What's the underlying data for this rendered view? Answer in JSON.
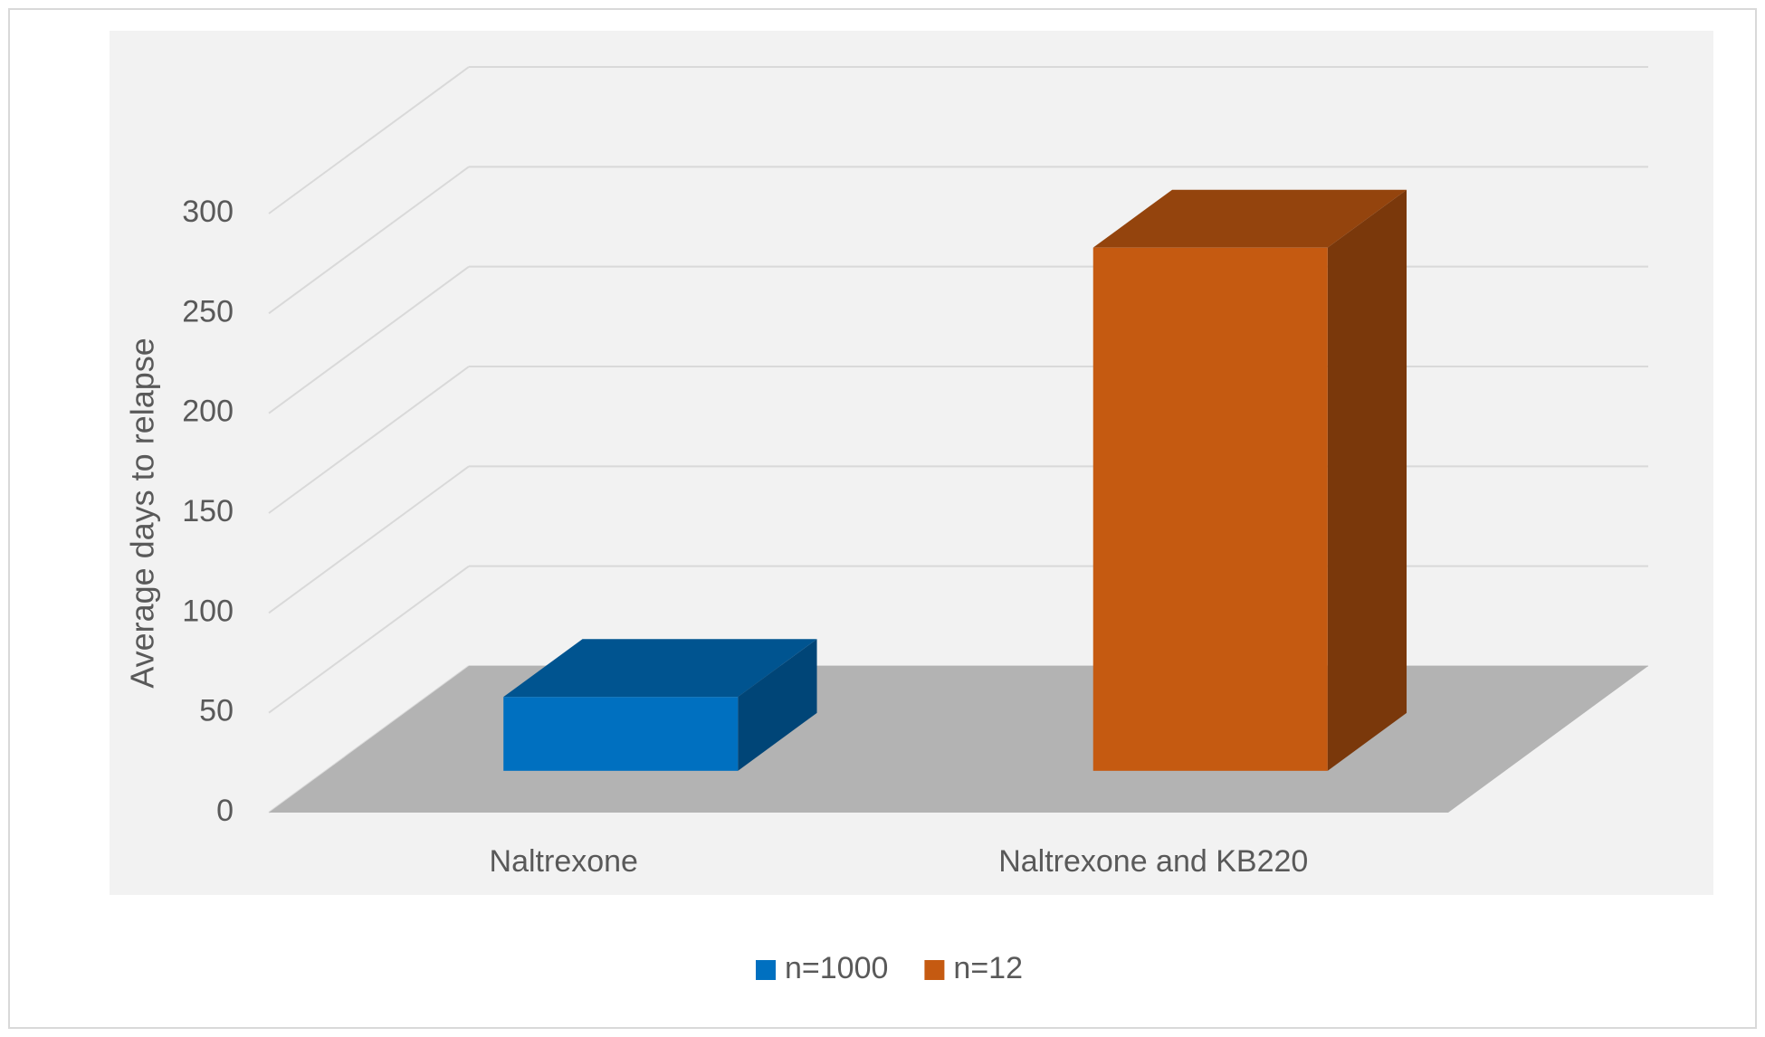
{
  "chart_data": {
    "type": "bar3d",
    "y_label": "Average days to relapse",
    "categories": [
      "Naltrexone",
      "Naltrexone and KB220"
    ],
    "series": [
      {
        "name": "n=1000",
        "color": "#0070c0",
        "values": [
          37,
          null
        ]
      },
      {
        "name": "n=12",
        "color": "#c55a11",
        "values": [
          null,
          262
        ]
      }
    ],
    "ylim": [
      0,
      300
    ],
    "yticks": [
      0,
      50,
      100,
      150,
      200,
      250,
      300
    ],
    "grid": true,
    "legend": "bottom"
  }
}
